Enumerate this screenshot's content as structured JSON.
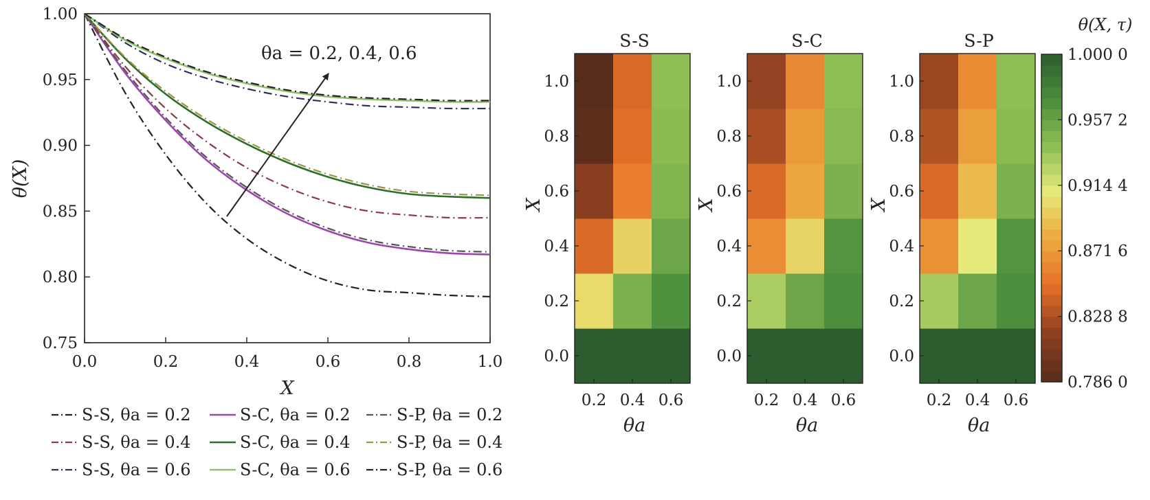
{
  "line_panel": {
    "ylabel": "θ(X)",
    "xlabel": "X",
    "annotation": "θa = 0.2, 0.4, 0.6"
  },
  "heatmaps": {
    "panel_titles": [
      "S-S",
      "S-C",
      "S-P"
    ],
    "ylabel": "X",
    "xlabel": "θa",
    "colorbar_label": "θ(X, τ)"
  },
  "colors": {
    "ss_02": "#222222",
    "ss_04": "#8a3b46",
    "ss_06": "#2a3157",
    "sc_02": "#9c45b0",
    "sc_04": "#2d6e2d",
    "sc_06": "#8ec16a",
    "sp_02": "#555555",
    "sp_04": "#9b9445",
    "sp_06": "#222222"
  },
  "chart_data": [
    {
      "type": "line",
      "xlabel": "X",
      "ylabel": "θ(X)",
      "xlim": [
        0,
        1
      ],
      "ylim": [
        0.75,
        1.0
      ],
      "xticks": [
        "0.0",
        "0.2",
        "0.4",
        "0.6",
        "0.8",
        "1.0"
      ],
      "yticks": [
        "0.75",
        "0.80",
        "0.85",
        "0.90",
        "0.95",
        "1.00"
      ],
      "annotation": "θa = 0.2, 0.4, 0.6",
      "x": [
        0,
        0.1,
        0.2,
        0.3,
        0.4,
        0.5,
        0.6,
        0.7,
        0.8,
        0.9,
        1.0
      ],
      "series": [
        {
          "name": "S-S, θa = 0.2",
          "linestyle": "dashdot",
          "color": "#222222",
          "values": [
            1.0,
            0.94,
            0.893,
            0.856,
            0.829,
            0.81,
            0.797,
            0.79,
            0.788,
            0.786,
            0.785
          ]
        },
        {
          "name": "S-C, θa = 0.2",
          "linestyle": "solid",
          "color": "#9c45b0",
          "values": [
            1.0,
            0.955,
            0.919,
            0.889,
            0.866,
            0.848,
            0.835,
            0.826,
            0.821,
            0.818,
            0.817
          ]
        },
        {
          "name": "S-P, θa = 0.2",
          "linestyle": "dashdot",
          "color": "#555555",
          "values": [
            1.0,
            0.957,
            0.921,
            0.891,
            0.868,
            0.85,
            0.837,
            0.828,
            0.823,
            0.82,
            0.819
          ]
        },
        {
          "name": "S-S, θa = 0.4",
          "linestyle": "dashdot",
          "color": "#8a3b46",
          "values": [
            1.0,
            0.96,
            0.928,
            0.903,
            0.883,
            0.868,
            0.857,
            0.85,
            0.847,
            0.845,
            0.845
          ]
        },
        {
          "name": "S-C, θa = 0.4",
          "linestyle": "solid",
          "color": "#2d6e2d",
          "values": [
            1.0,
            0.966,
            0.939,
            0.918,
            0.901,
            0.887,
            0.876,
            0.868,
            0.863,
            0.861,
            0.86
          ]
        },
        {
          "name": "S-P, θa = 0.4",
          "linestyle": "dashdot",
          "color": "#9b9445",
          "values": [
            1.0,
            0.967,
            0.941,
            0.92,
            0.903,
            0.889,
            0.878,
            0.87,
            0.865,
            0.863,
            0.862
          ]
        },
        {
          "name": "S-S, θa = 0.6",
          "linestyle": "dashdot",
          "color": "#2a3157",
          "values": [
            1.0,
            0.978,
            0.962,
            0.951,
            0.943,
            0.937,
            0.933,
            0.93,
            0.929,
            0.928,
            0.928
          ]
        },
        {
          "name": "S-C, θa = 0.6",
          "linestyle": "solid",
          "color": "#8ec16a",
          "values": [
            1.0,
            0.98,
            0.966,
            0.955,
            0.947,
            0.941,
            0.937,
            0.935,
            0.934,
            0.933,
            0.933
          ]
        },
        {
          "name": "S-P, θa = 0.6",
          "linestyle": "dashdot",
          "color": "#222222",
          "values": [
            1.0,
            0.981,
            0.967,
            0.956,
            0.948,
            0.942,
            0.938,
            0.936,
            0.935,
            0.934,
            0.934
          ]
        }
      ]
    },
    {
      "type": "heatmap",
      "title": "S-S",
      "xlabel": "θa",
      "ylabel": "X",
      "x_categories": [
        "0.2",
        "0.4",
        "0.6"
      ],
      "y_categories": [
        "0.0",
        "0.2",
        "0.4",
        "0.6",
        "0.8",
        "1.0"
      ],
      "values": [
        [
          1.0,
          1.0,
          1.0
        ],
        [
          0.903,
          0.948,
          0.968
        ],
        [
          0.845,
          0.898,
          0.955
        ],
        [
          0.815,
          0.857,
          0.946
        ],
        [
          0.79,
          0.848,
          0.942
        ],
        [
          0.786,
          0.845,
          0.94
        ]
      ]
    },
    {
      "type": "heatmap",
      "title": "S-C",
      "xlabel": "θa",
      "ylabel": "X",
      "x_categories": [
        "0.2",
        "0.4",
        "0.6"
      ],
      "y_categories": [
        "0.0",
        "0.2",
        "0.4",
        "0.6",
        "0.8",
        "1.0"
      ],
      "values": [
        [
          1.0,
          1.0,
          1.0
        ],
        [
          0.93,
          0.955,
          0.97
        ],
        [
          0.865,
          0.9,
          0.966
        ],
        [
          0.845,
          0.878,
          0.948
        ],
        [
          0.828,
          0.872,
          0.943
        ],
        [
          0.82,
          0.862,
          0.94
        ]
      ]
    },
    {
      "type": "heatmap",
      "title": "S-P",
      "xlabel": "θa",
      "ylabel": "X",
      "x_categories": [
        "0.2",
        "0.4",
        "0.6"
      ],
      "y_categories": [
        "0.0",
        "0.2",
        "0.4",
        "0.6",
        "0.8",
        "1.0"
      ],
      "values": [
        [
          1.0,
          1.0,
          1.0
        ],
        [
          0.932,
          0.955,
          0.97
        ],
        [
          0.866,
          0.91,
          0.966
        ],
        [
          0.845,
          0.888,
          0.948
        ],
        [
          0.83,
          0.874,
          0.942
        ],
        [
          0.822,
          0.864,
          0.94
        ]
      ]
    }
  ],
  "colorbar": {
    "label": "θ(X, τ)",
    "range": [
      0.786,
      1.0
    ],
    "tick_values": [
      1.0,
      0.9572,
      0.9144,
      0.8716,
      0.8288,
      0.786
    ],
    "tick_labels": [
      "1.000 0",
      "0.957 2",
      "0.914 4",
      "0.871 6",
      "0.828 8",
      "0.786 0"
    ]
  }
}
